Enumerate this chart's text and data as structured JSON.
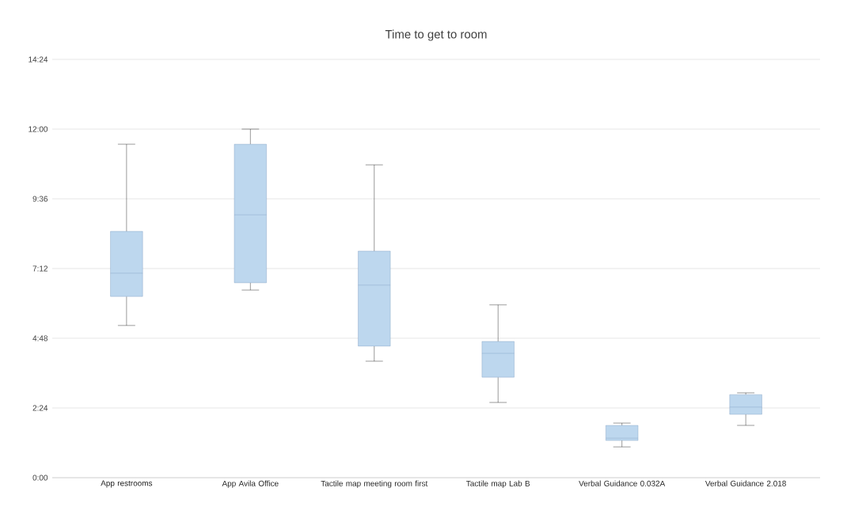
{
  "chart_data": {
    "type": "box",
    "title": "Time to get to room",
    "categories": [
      "App restrooms",
      "App Avila Office",
      "Tactile map meeting room first",
      "Tactile map Lab B",
      "Verbal Guidance 0.032A",
      "Verbal Guidance 2.018"
    ],
    "boxes": [
      {
        "low": 5.24,
        "q1": 6.24,
        "median": 7.04,
        "q3": 8.48,
        "high": 11.48
      },
      {
        "low": 6.46,
        "q1": 6.71,
        "median": 9.05,
        "q3": 11.48,
        "high": 12.0
      },
      {
        "low": 4.01,
        "q1": 4.53,
        "median": 6.63,
        "q3": 7.8,
        "high": 10.77
      },
      {
        "low": 2.59,
        "q1": 3.46,
        "median": 4.28,
        "q3": 4.69,
        "high": 5.95
      },
      {
        "low": 1.06,
        "q1": 1.28,
        "median": 1.36,
        "q3": 1.8,
        "high": 1.88
      },
      {
        "low": 1.8,
        "q1": 2.18,
        "median": 2.43,
        "q3": 2.86,
        "high": 2.92
      }
    ],
    "color": "#bdd7ee",
    "ylim": [
      0,
      14.4
    ],
    "yticks": [
      {
        "value": 0,
        "label": "0:00"
      },
      {
        "value": 2.4,
        "label": "2:24"
      },
      {
        "value": 4.8,
        "label": "4:48"
      },
      {
        "value": 7.2,
        "label": "7:12"
      },
      {
        "value": 9.6,
        "label": "9:36"
      },
      {
        "value": 12,
        "label": "12:00"
      },
      {
        "value": 14.4,
        "label": "14:24"
      }
    ],
    "grid": "y"
  }
}
